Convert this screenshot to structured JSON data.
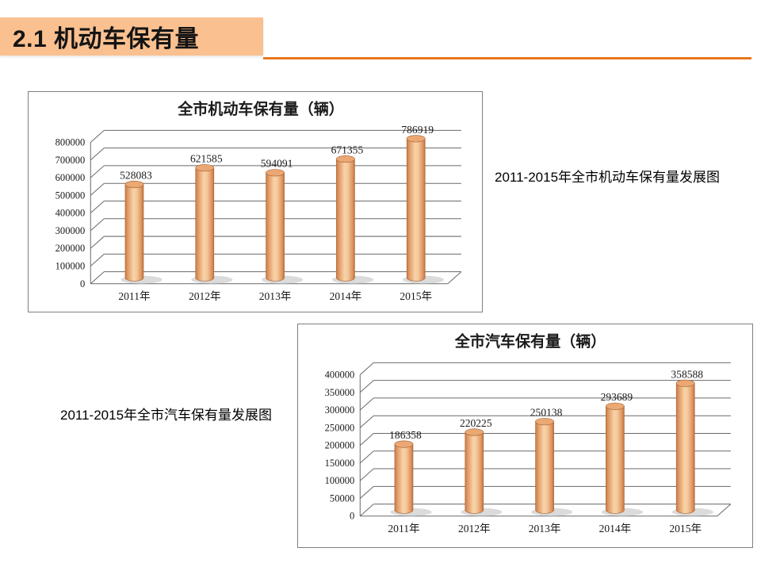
{
  "page": {
    "title": "2.1 机动车保有量",
    "title_block_color": "#FAC090",
    "underline_color": "#E8781E"
  },
  "captions": {
    "top_chart": "2011-2015年全市机动车保有量发展图",
    "bottom_chart": "2011-2015年全市汽车保有量发展图"
  },
  "chart_data": [
    {
      "type": "bar",
      "style": "3d-cylinder",
      "title": "全市机动车保有量（辆）",
      "categories": [
        "2011年",
        "2012年",
        "2013年",
        "2014年",
        "2015年"
      ],
      "values": [
        528083,
        621585,
        594091,
        671355,
        786919
      ],
      "data_labels": [
        "528083",
        "621585",
        "594091",
        "671355",
        "786919"
      ],
      "ytick_labels": [
        "0",
        "100000",
        "200000",
        "300000",
        "400000",
        "500000",
        "600000",
        "700000",
        "800000"
      ],
      "ylim": [
        0,
        800000
      ],
      "ytick_step": 100000,
      "xlabel": "",
      "ylabel": "",
      "grid": true,
      "legend": "none",
      "bar_color": "#F2B083",
      "bar_edge_color": "#A86A3C",
      "shadow_color": "#D2D2D2",
      "gridline_color": "#6a6a6a"
    },
    {
      "type": "bar",
      "style": "3d-cylinder",
      "title": "全市汽车保有量（辆）",
      "categories": [
        "2011年",
        "2012年",
        "2013年",
        "2014年",
        "2015年"
      ],
      "values": [
        186358,
        220225,
        250138,
        293689,
        358588
      ],
      "data_labels": [
        "186358",
        "220225",
        "250138",
        "293689",
        "358588"
      ],
      "ytick_labels": [
        "0",
        "50000",
        "100000",
        "150000",
        "200000",
        "250000",
        "300000",
        "350000",
        "400000"
      ],
      "ylim": [
        0,
        400000
      ],
      "ytick_step": 50000,
      "xlabel": "",
      "ylabel": "",
      "grid": true,
      "legend": "none",
      "bar_color": "#F2B083",
      "bar_edge_color": "#A86A3C",
      "shadow_color": "#D2D2D2",
      "gridline_color": "#6a6a6a"
    }
  ]
}
